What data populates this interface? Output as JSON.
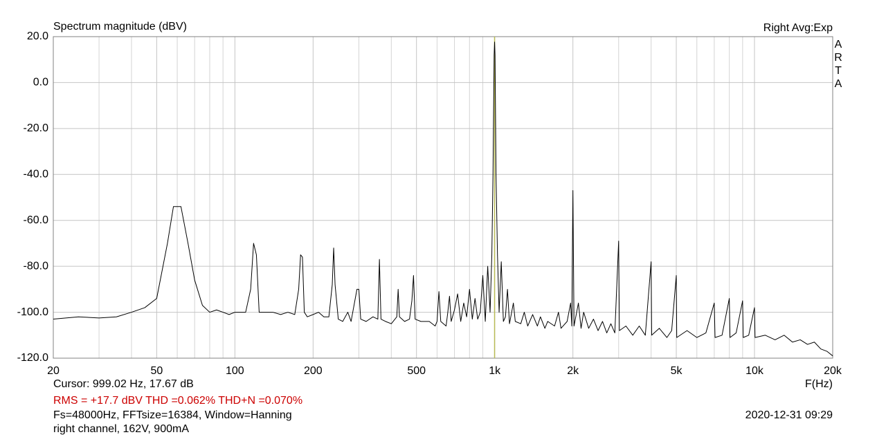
{
  "chart_data": {
    "type": "line",
    "title": "Spectrum magnitude (dBV)",
    "corner_note": "Right Avg:Exp",
    "brand": "ARTA",
    "x_axis_label": "F(Hz)",
    "log_x": true,
    "xlim": [
      20,
      20000
    ],
    "ylim": [
      -120,
      20
    ],
    "xticks": [
      20,
      50,
      100,
      200,
      500,
      {
        "value": 1000,
        "label": "1k"
      },
      {
        "value": 2000,
        "label": "2k"
      },
      {
        "value": 5000,
        "label": "5k"
      },
      {
        "value": 10000,
        "label": "10k"
      },
      {
        "value": 20000,
        "label": "20k"
      }
    ],
    "x_minor_grid": [
      30,
      40,
      60,
      70,
      80,
      90,
      300,
      400,
      600,
      700,
      800,
      900,
      3000,
      4000,
      6000,
      7000,
      8000,
      9000
    ],
    "yticks": [
      {
        "value": 20,
        "label": "20.0"
      },
      {
        "value": 0,
        "label": "0.0"
      },
      {
        "value": -20,
        "label": "-20.0"
      },
      {
        "value": -40,
        "label": "-40.0"
      },
      {
        "value": -60,
        "label": "-60.0"
      },
      {
        "value": -80,
        "label": "-80.0"
      },
      {
        "value": -100,
        "label": "-100.0"
      },
      {
        "value": -120,
        "label": "-120.0"
      }
    ],
    "grid": true,
    "cursor_x": 999.02,
    "cursor_color": "#b8bb55",
    "x": [
      20,
      25,
      30,
      35,
      40,
      45,
      50,
      55,
      58,
      62,
      66,
      70,
      75,
      80,
      85,
      90,
      95,
      100,
      110,
      115,
      118,
      121,
      124,
      130,
      140,
      150,
      160,
      170,
      176,
      179,
      182,
      185,
      190,
      200,
      210,
      220,
      230,
      237,
      240,
      243,
      250,
      260,
      272,
      280,
      295,
      300,
      305,
      320,
      340,
      355,
      360,
      365,
      380,
      400,
      420,
      425,
      430,
      450,
      470,
      480,
      487,
      494,
      520,
      560,
      590,
      600,
      610,
      620,
      650,
      660,
      670,
      680,
      700,
      720,
      740,
      760,
      780,
      800,
      820,
      840,
      860,
      880,
      900,
      920,
      940,
      960,
      975,
      985,
      995,
      999,
      1003,
      1012,
      1025,
      1040,
      1060,
      1080,
      1100,
      1120,
      1140,
      1180,
      1200,
      1260,
      1300,
      1340,
      1400,
      1460,
      1500,
      1560,
      1600,
      1700,
      1760,
      1800,
      1900,
      1960,
      1980,
      2000,
      2020,
      2100,
      2150,
      2200,
      2300,
      2400,
      2500,
      2600,
      2700,
      2800,
      2900,
      3000,
      3020,
      3200,
      3400,
      3600,
      3800,
      4000,
      4020,
      4300,
      4600,
      4800,
      5000,
      5020,
      5500,
      6000,
      6500,
      7000,
      7050,
      7500,
      8000,
      8050,
      8500,
      9000,
      9050,
      9500,
      10000,
      10050,
      11000,
      12000,
      13000,
      14000,
      15000,
      16000,
      17000,
      18000,
      19000,
      20000
    ],
    "series": [
      {
        "color": "#000000",
        "values": [
          -103,
          -102,
          -102.5,
          -102,
          -100,
          -98,
          -94,
          -70,
          -54,
          -54,
          -70,
          -86,
          -97,
          -100,
          -99,
          -100,
          -101,
          -100,
          -100,
          -90,
          -70,
          -75,
          -100,
          -100,
          -100,
          -101,
          -100,
          -101,
          -90,
          -75,
          -76,
          -100,
          -102,
          -101,
          -100,
          -102,
          -102,
          -88,
          -72,
          -88,
          -103,
          -104,
          -100,
          -104,
          -90,
          -90,
          -103,
          -104,
          -102,
          -103,
          -77,
          -103,
          -104,
          -105,
          -102,
          -90,
          -102,
          -104,
          -103,
          -95,
          -84,
          -103,
          -104,
          -104,
          -106,
          -104,
          -91,
          -104,
          -106,
          -100,
          -93,
          -104,
          -99,
          -92,
          -104,
          -96,
          -102,
          -90,
          -103,
          -94,
          -103,
          -100,
          -84,
          -104,
          -80,
          -100,
          -75,
          -40,
          12,
          17.67,
          12,
          -40,
          -75,
          -100,
          -78,
          -104,
          -102,
          -90,
          -105,
          -96,
          -104,
          -105,
          -100,
          -106,
          -101,
          -106,
          -102,
          -107,
          -104,
          -106,
          -100,
          -107,
          -104,
          -96,
          -106,
          -47,
          -106,
          -96,
          -107,
          -100,
          -107,
          -103,
          -108,
          -104,
          -109,
          -105,
          -109,
          -69,
          -108,
          -106,
          -110,
          -106,
          -110,
          -78,
          -110,
          -107,
          -111,
          -108,
          -84,
          -111,
          -108,
          -111,
          -109,
          -96,
          -111,
          -110,
          -94,
          -111,
          -109,
          -95,
          -111,
          -110,
          -98,
          -111,
          -110,
          -112,
          -110,
          -113,
          -112,
          -114,
          -113,
          -116,
          -117,
          -119
        ]
      }
    ],
    "notes": [
      {
        "text": "Cursor: 999.02 Hz, 17.67 dB",
        "color": "#000000"
      },
      {
        "text": "RMS =  +17.7 dBV THD =0.062% THD+N =0.070%",
        "color": "#cc0000"
      },
      {
        "text": "Fs=48000Hz, FFTsize=16384, Window=Hanning",
        "color": "#000000"
      },
      {
        "text": "right channel, 162V, 900mA",
        "color": "#000000"
      }
    ],
    "timestamp": "2020-12-31  09:29"
  }
}
